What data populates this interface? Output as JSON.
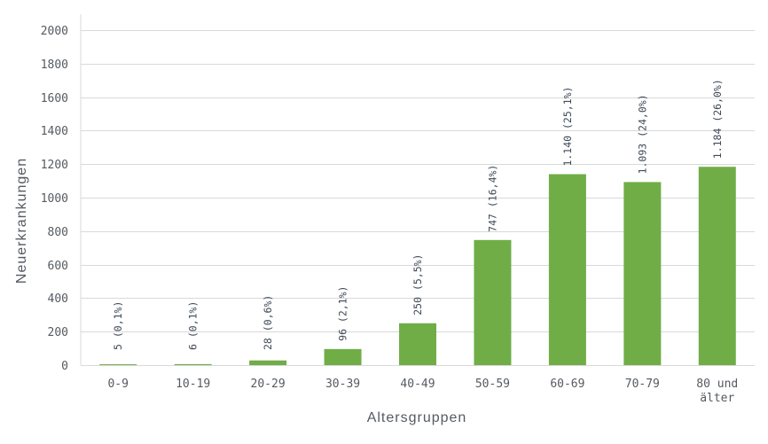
{
  "chart_data": {
    "type": "bar",
    "title": "",
    "xlabel": "Altersgruppen",
    "ylabel": "Neuerkrankungen",
    "categories": [
      "0-9",
      "10-19",
      "20-29",
      "30-39",
      "40-49",
      "50-59",
      "60-69",
      "70-79",
      "80 und älter"
    ],
    "values": [
      5,
      6,
      28,
      96,
      250,
      747,
      1140,
      1093,
      1184
    ],
    "data_labels": [
      "5 (0,1%)",
      "6 (0,1%)",
      "28 (0,6%)",
      "96 (2,1%)",
      "250 (5,5%)",
      "747 (16,4%)",
      "1.140 (25,1%)",
      "1.093 (24,0%)",
      "1.184 (26,0%)"
    ],
    "ylim": [
      0,
      2000
    ],
    "yticks": [
      0,
      200,
      400,
      600,
      800,
      1000,
      1200,
      1400,
      1600,
      1800,
      2000
    ],
    "grid": true,
    "bar_color": "#70ad47",
    "grid_color": "#d9d9d9"
  }
}
